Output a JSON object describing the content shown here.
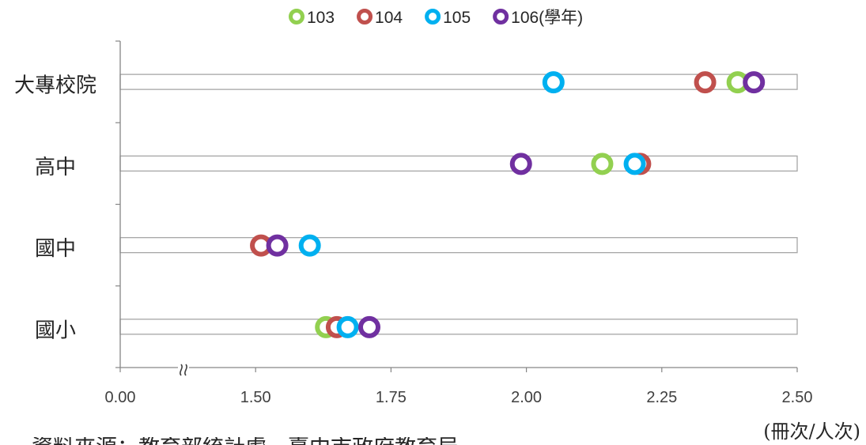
{
  "chart_data": {
    "type": "scatter",
    "categories": [
      "大專校院",
      "高中",
      "國中",
      "國小"
    ],
    "series": [
      {
        "name": "103",
        "color": "#92D050",
        "values": [
          2.39,
          2.14,
          null,
          1.63
        ]
      },
      {
        "name": "104",
        "color": "#C0504D",
        "values": [
          2.33,
          2.21,
          1.51,
          1.65
        ]
      },
      {
        "name": "105",
        "color": "#00B0F0",
        "values": [
          2.05,
          2.2,
          1.6,
          1.67
        ]
      },
      {
        "name": "106(學年)",
        "color": "#7030A0",
        "values": [
          2.42,
          1.99,
          1.54,
          1.71
        ]
      }
    ],
    "x_ticks": [
      "0.00",
      "1.50",
      "1.75",
      "2.00",
      "2.25",
      "2.50"
    ],
    "xlim": [
      0,
      2.5
    ],
    "axis_break": [
      0,
      1.5
    ],
    "xlabel": "(冊次/人次)",
    "ylabel": "",
    "legend_position": "top",
    "grid": false
  },
  "source_note": "資料來源：教育部統計處、臺中市政府教育局"
}
